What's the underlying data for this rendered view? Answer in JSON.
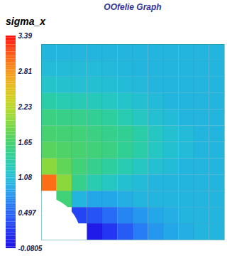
{
  "chart_data": {
    "type": "heatmap",
    "title": "OOfelie Graph",
    "colorbar_label": "sigma_x",
    "xlim": [
      0,
      1
    ],
    "ylim": [
      0,
      1
    ],
    "tick_labels": false,
    "hole_radius": 0.22,
    "cells": [
      [
        null,
        null,
        null,
        0.0,
        0.2,
        0.45,
        0.65,
        0.8,
        0.9,
        0.95,
        1.0,
        1.0
      ],
      [
        null,
        null,
        0.3,
        0.4,
        0.55,
        0.7,
        0.8,
        0.9,
        0.95,
        1.0,
        1.0,
        1.0
      ],
      [
        null,
        1.6,
        1.0,
        0.9,
        0.9,
        0.95,
        1.0,
        1.0,
        1.0,
        1.0,
        1.0,
        1.0
      ],
      [
        3.0,
        2.0,
        1.5,
        1.3,
        1.2,
        1.1,
        1.05,
        1.0,
        1.0,
        1.0,
        1.0,
        1.0
      ],
      [
        2.0,
        1.8,
        1.6,
        1.5,
        1.4,
        1.3,
        1.2,
        1.1,
        1.05,
        1.0,
        1.0,
        1.0
      ],
      [
        1.75,
        1.7,
        1.65,
        1.6,
        1.55,
        1.45,
        1.35,
        1.2,
        1.1,
        1.05,
        1.0,
        1.0
      ],
      [
        1.65,
        1.62,
        1.6,
        1.55,
        1.5,
        1.45,
        1.35,
        1.2,
        1.1,
        1.05,
        1.0,
        1.0
      ],
      [
        1.55,
        1.52,
        1.5,
        1.45,
        1.4,
        1.3,
        1.2,
        1.1,
        1.05,
        1.0,
        1.0,
        1.0
      ],
      [
        1.35,
        1.3,
        1.28,
        1.25,
        1.2,
        1.15,
        1.1,
        1.05,
        1.0,
        1.0,
        1.0,
        1.0
      ],
      [
        1.15,
        1.12,
        1.1,
        1.1,
        1.08,
        1.05,
        1.03,
        1.0,
        1.0,
        1.0,
        1.0,
        1.0
      ],
      [
        1.05,
        1.05,
        1.05,
        1.05,
        1.03,
        1.02,
        1.0,
        1.0,
        1.0,
        1.0,
        1.0,
        1.0
      ],
      [
        1.0,
        1.0,
        1.0,
        1.0,
        1.0,
        1.0,
        1.0,
        1.0,
        1.0,
        1.0,
        1.0,
        1.0
      ]
    ],
    "colorbar": {
      "range": [
        -0.0805,
        3.39
      ],
      "ticks": [
        3.39,
        2.81,
        2.23,
        1.65,
        1.08,
        0.497,
        -0.0805
      ]
    }
  }
}
